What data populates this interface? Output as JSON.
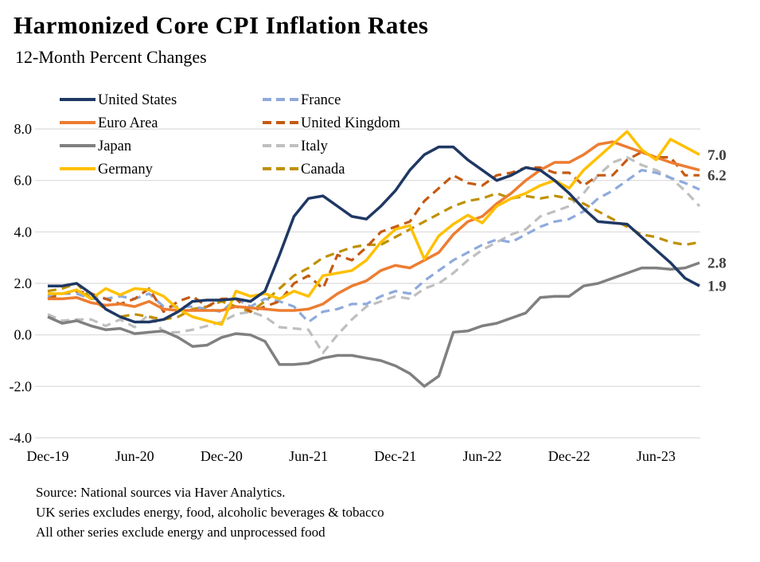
{
  "title": "Harmonized Core CPI Inflation Rates",
  "subtitle": "12-Month Percent Changes",
  "source": {
    "lines": [
      "Source: National sources via Haver Analytics.",
      "UK series excludes energy, food, alcoholic beverages & tobacco",
      "All other series exclude energy and unprocessed food"
    ]
  },
  "chart_data": {
    "type": "line",
    "x": [
      "Dec-19",
      "Jan-20",
      "Feb-20",
      "Mar-20",
      "Apr-20",
      "May-20",
      "Jun-20",
      "Jul-20",
      "Aug-20",
      "Sep-20",
      "Oct-20",
      "Nov-20",
      "Dec-20",
      "Jan-21",
      "Feb-21",
      "Mar-21",
      "Apr-21",
      "May-21",
      "Jun-21",
      "Jul-21",
      "Aug-21",
      "Sep-21",
      "Oct-21",
      "Nov-21",
      "Dec-21",
      "Jan-22",
      "Feb-22",
      "Mar-22",
      "Apr-22",
      "May-22",
      "Jun-22",
      "Jul-22",
      "Aug-22",
      "Sep-22",
      "Oct-22",
      "Nov-22",
      "Dec-22",
      "Jan-23",
      "Feb-23",
      "Mar-23",
      "Apr-23",
      "May-23",
      "Jun-23",
      "Jul-23",
      "Aug-23",
      "Sep-23"
    ],
    "x_tick_labels": [
      "Dec-19",
      "Jun-20",
      "Dec-20",
      "Jun-21",
      "Dec-21",
      "Jun-22",
      "Dec-22",
      "Jun-23"
    ],
    "x_tick_every": 6,
    "ylim": [
      -4.0,
      8.0
    ],
    "y_ticks": [
      8.0,
      6.0,
      4.0,
      2.0,
      0.0,
      -2.0,
      -4.0
    ],
    "grid": "horizontal",
    "gridline_color": "#d9d9d9",
    "end_label_color": "#3f3f3f",
    "legend_position": "top-left, two columns, no border",
    "legend_columns": [
      [
        "United States",
        "Euro Area",
        "Japan",
        "Germany"
      ],
      [
        "France",
        "United Kingdom",
        "Italy",
        "Canada"
      ]
    ],
    "series": [
      {
        "name": "United States",
        "color": "#1F3864",
        "style": "solid",
        "end_label": "1.9",
        "values": [
          1.9,
          1.9,
          2.0,
          1.6,
          1.0,
          0.7,
          0.5,
          0.5,
          0.6,
          0.9,
          1.3,
          1.35,
          1.35,
          1.4,
          1.3,
          1.7,
          3.1,
          4.6,
          5.3,
          5.4,
          5.0,
          4.6,
          4.5,
          5.0,
          5.6,
          6.4,
          7.0,
          7.3,
          7.3,
          6.8,
          6.4,
          6.0,
          6.2,
          6.5,
          6.4,
          6.0,
          5.5,
          4.9,
          4.4,
          4.35,
          4.3,
          3.8,
          3.3,
          2.8,
          2.2,
          1.9
        ]
      },
      {
        "name": "Euro Area",
        "color": "#ED7D31",
        "style": "solid",
        "end_label": "",
        "values": [
          1.4,
          1.4,
          1.45,
          1.25,
          1.15,
          1.2,
          1.1,
          1.3,
          1.0,
          0.95,
          0.95,
          0.95,
          0.95,
          1.1,
          1.05,
          1.0,
          0.95,
          0.95,
          1.0,
          1.2,
          1.6,
          1.9,
          2.1,
          2.5,
          2.7,
          2.6,
          2.9,
          3.2,
          3.9,
          4.4,
          4.6,
          5.1,
          5.5,
          6.0,
          6.4,
          6.7,
          6.7,
          7.0,
          7.4,
          7.5,
          7.3,
          7.1,
          6.9,
          6.7,
          6.55,
          6.4
        ]
      },
      {
        "name": "Japan",
        "color": "#808080",
        "style": "solid",
        "end_label": "2.8",
        "values": [
          0.7,
          0.45,
          0.55,
          0.35,
          0.2,
          0.25,
          0.05,
          0.1,
          0.15,
          -0.1,
          -0.45,
          -0.4,
          -0.1,
          0.05,
          0.0,
          -0.25,
          -1.15,
          -1.15,
          -1.1,
          -0.9,
          -0.8,
          -0.8,
          -0.9,
          -1.0,
          -1.2,
          -1.5,
          -2.0,
          -1.6,
          0.1,
          0.15,
          0.35,
          0.45,
          0.65,
          0.85,
          1.45,
          1.5,
          1.5,
          1.9,
          2.0,
          2.2,
          2.4,
          2.6,
          2.6,
          2.55,
          2.6,
          2.8
        ]
      },
      {
        "name": "Germany",
        "color": "#FFC000",
        "style": "solid",
        "end_label": "7.0",
        "values": [
          1.6,
          1.6,
          1.75,
          1.4,
          1.8,
          1.55,
          1.8,
          1.75,
          1.5,
          1.0,
          0.7,
          0.55,
          0.4,
          1.7,
          1.5,
          1.6,
          1.4,
          1.7,
          1.5,
          2.3,
          2.4,
          2.5,
          2.9,
          3.6,
          4.1,
          4.25,
          2.95,
          3.85,
          4.3,
          4.65,
          4.35,
          5.0,
          5.3,
          5.5,
          5.8,
          6.0,
          5.7,
          6.4,
          6.9,
          7.4,
          7.9,
          7.2,
          6.8,
          7.6,
          7.3,
          7.0
        ]
      },
      {
        "name": "France",
        "color": "#8FAADC",
        "style": "dashed",
        "end_label": "",
        "values": [
          1.5,
          1.6,
          1.6,
          1.4,
          1.4,
          1.5,
          1.4,
          1.6,
          1.1,
          1.1,
          1.1,
          1.0,
          0.9,
          1.4,
          1.1,
          1.4,
          1.3,
          1.1,
          0.5,
          0.9,
          1.0,
          1.2,
          1.2,
          1.5,
          1.7,
          1.6,
          2.1,
          2.5,
          2.9,
          3.2,
          3.5,
          3.7,
          3.6,
          3.9,
          4.2,
          4.4,
          4.5,
          4.8,
          5.3,
          5.6,
          6.0,
          6.4,
          6.3,
          6.1,
          5.9,
          5.65
        ]
      },
      {
        "name": "United Kingdom",
        "color": "#C55A11",
        "style": "dashed",
        "end_label": "6.2",
        "values": [
          1.4,
          1.6,
          1.7,
          1.6,
          1.4,
          1.2,
          1.4,
          1.8,
          0.9,
          1.3,
          1.5,
          1.1,
          1.4,
          1.4,
          0.9,
          1.1,
          1.3,
          2.0,
          2.3,
          1.8,
          3.1,
          2.9,
          3.4,
          4.0,
          4.2,
          4.4,
          5.2,
          5.7,
          6.2,
          5.9,
          5.8,
          6.2,
          6.3,
          6.5,
          6.5,
          6.3,
          6.3,
          5.8,
          6.2,
          6.2,
          6.8,
          7.1,
          6.9,
          6.9,
          6.2,
          6.2
        ]
      },
      {
        "name": "Italy",
        "color": "#BFBFBF",
        "style": "dashed",
        "end_label": "",
        "values": [
          0.8,
          0.55,
          0.6,
          0.6,
          0.35,
          0.6,
          0.3,
          0.8,
          0.1,
          0.1,
          0.2,
          0.35,
          0.5,
          0.8,
          0.9,
          0.7,
          0.3,
          0.25,
          0.2,
          -0.7,
          0.0,
          0.6,
          1.1,
          1.3,
          1.5,
          1.4,
          1.8,
          2.0,
          2.4,
          2.9,
          3.3,
          3.6,
          3.9,
          4.1,
          4.6,
          4.8,
          5.0,
          5.5,
          6.2,
          6.7,
          6.9,
          6.6,
          6.4,
          6.1,
          5.6,
          5.0
        ]
      },
      {
        "name": "Canada",
        "color": "#BF9000",
        "style": "dashed",
        "end_label": "",
        "values": [
          1.7,
          1.8,
          2.0,
          1.4,
          1.0,
          0.7,
          0.8,
          0.7,
          0.6,
          0.7,
          1.0,
          1.1,
          1.3,
          1.1,
          0.9,
          1.3,
          1.8,
          2.3,
          2.6,
          3.0,
          3.2,
          3.4,
          3.5,
          3.5,
          3.8,
          4.1,
          4.4,
          4.7,
          5.0,
          5.2,
          5.3,
          5.5,
          5.3,
          5.4,
          5.3,
          5.4,
          5.3,
          5.1,
          4.8,
          4.5,
          4.2,
          3.9,
          3.8,
          3.6,
          3.5,
          3.6
        ]
      }
    ]
  }
}
